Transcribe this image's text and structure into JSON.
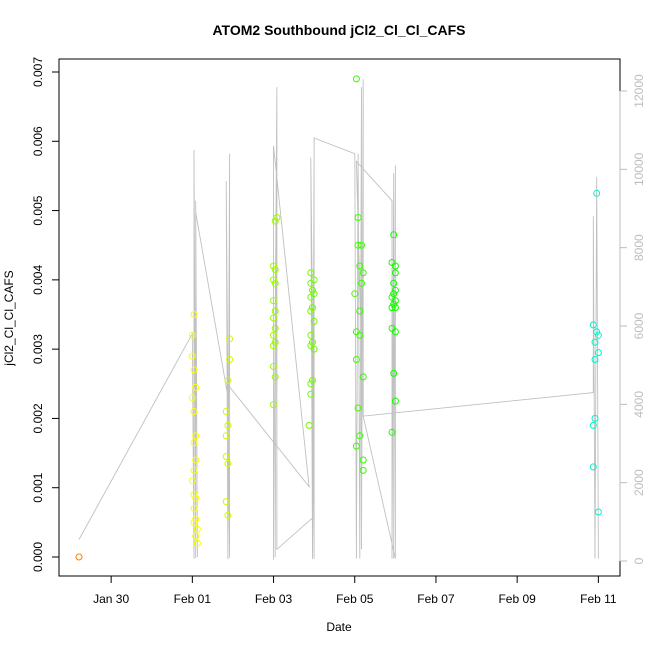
{
  "chart_data": {
    "type": "scatter",
    "title": "ATOM2 Southbound jCl2_Cl_Cl_CAFS",
    "xlabel": "Date",
    "ylabel": "jCl2_Cl_Cl_CAFS",
    "x_ticks": [
      "Jan 30",
      "Feb 01",
      "Feb 03",
      "Feb 05",
      "Feb 07",
      "Feb 09",
      "Feb 11"
    ],
    "y_ticks": [
      "0.000",
      "0.001",
      "0.002",
      "0.003",
      "0.004",
      "0.005",
      "0.006",
      "0.007"
    ],
    "y2_ticks": [
      "0",
      "2000",
      "4000",
      "6000",
      "8000",
      "10000",
      "12000"
    ],
    "points": [
      {
        "x": "Jan 29 05:00",
        "y": 0.0
      },
      {
        "x": "Feb 01 00:00",
        "y": 0.0032
      },
      {
        "x": "Feb 01 00:00",
        "y": 0.0029
      },
      {
        "x": "Feb 01 01:00",
        "y": 0.0035
      },
      {
        "x": "Feb 01 01:00",
        "y": 0.0027
      },
      {
        "x": "Feb 01 02:00",
        "y": 0.00245
      },
      {
        "x": "Feb 01 00:00",
        "y": 0.0023
      },
      {
        "x": "Feb 01 01:00",
        "y": 0.0021
      },
      {
        "x": "Feb 01 02:00",
        "y": 0.00175
      },
      {
        "x": "Feb 01 01:00",
        "y": 0.00165
      },
      {
        "x": "Feb 01 02:00",
        "y": 0.0014
      },
      {
        "x": "Feb 01 01:00",
        "y": 0.00125
      },
      {
        "x": "Feb 01 00:00",
        "y": 0.0011
      },
      {
        "x": "Feb 01 01:00",
        "y": 0.0009
      },
      {
        "x": "Feb 01 02:00",
        "y": 0.00085
      },
      {
        "x": "Feb 01 01:00",
        "y": 0.0007
      },
      {
        "x": "Feb 01 02:00",
        "y": 0.00055
      },
      {
        "x": "Feb 01 01:00",
        "y": 0.0005
      },
      {
        "x": "Feb 01 03:00",
        "y": 0.0004
      },
      {
        "x": "Feb 01 02:00",
        "y": 0.0003
      },
      {
        "x": "Feb 01 03:00",
        "y": 0.0002
      },
      {
        "x": "Feb 01 22:00",
        "y": 0.00315
      },
      {
        "x": "Feb 01 22:00",
        "y": 0.00285
      },
      {
        "x": "Feb 01 21:00",
        "y": 0.00255
      },
      {
        "x": "Feb 01 20:00",
        "y": 0.0021
      },
      {
        "x": "Feb 01 21:00",
        "y": 0.0019
      },
      {
        "x": "Feb 01 20:00",
        "y": 0.00175
      },
      {
        "x": "Feb 01 20:00",
        "y": 0.00145
      },
      {
        "x": "Feb 01 21:00",
        "y": 0.00135
      },
      {
        "x": "Feb 01 20:00",
        "y": 0.0008
      },
      {
        "x": "Feb 01 21:00",
        "y": 0.0006
      },
      {
        "x": "Feb 03 02:00",
        "y": 0.0049
      },
      {
        "x": "Feb 03 01:00",
        "y": 0.00485
      },
      {
        "x": "Feb 03 00:00",
        "y": 0.0042
      },
      {
        "x": "Feb 03 01:00",
        "y": 0.00415
      },
      {
        "x": "Feb 03 00:00",
        "y": 0.004
      },
      {
        "x": "Feb 03 01:00",
        "y": 0.00395
      },
      {
        "x": "Feb 03 00:00",
        "y": 0.0037
      },
      {
        "x": "Feb 03 01:00",
        "y": 0.00355
      },
      {
        "x": "Feb 03 00:00",
        "y": 0.00345
      },
      {
        "x": "Feb 03 01:00",
        "y": 0.0033
      },
      {
        "x": "Feb 03 00:00",
        "y": 0.0032
      },
      {
        "x": "Feb 03 01:00",
        "y": 0.0031
      },
      {
        "x": "Feb 03 00:00",
        "y": 0.00305
      },
      {
        "x": "Feb 03 00:00",
        "y": 0.00275
      },
      {
        "x": "Feb 03 01:00",
        "y": 0.0026
      },
      {
        "x": "Feb 03 00:00",
        "y": 0.0022
      },
      {
        "x": "Feb 03 22:00",
        "y": 0.0041
      },
      {
        "x": "Feb 04 00:00",
        "y": 0.004
      },
      {
        "x": "Feb 03 22:00",
        "y": 0.00395
      },
      {
        "x": "Feb 03 23:00",
        "y": 0.00385
      },
      {
        "x": "Feb 03 22:00",
        "y": 0.00375
      },
      {
        "x": "Feb 04 00:00",
        "y": 0.0038
      },
      {
        "x": "Feb 03 23:00",
        "y": 0.0036
      },
      {
        "x": "Feb 03 22:00",
        "y": 0.00355
      },
      {
        "x": "Feb 04 00:00",
        "y": 0.0034
      },
      {
        "x": "Feb 03 22:00",
        "y": 0.0032
      },
      {
        "x": "Feb 03 23:00",
        "y": 0.0031
      },
      {
        "x": "Feb 03 22:00",
        "y": 0.00305
      },
      {
        "x": "Feb 04 00:00",
        "y": 0.003
      },
      {
        "x": "Feb 03 23:00",
        "y": 0.00255
      },
      {
        "x": "Feb 03 22:00",
        "y": 0.0025
      },
      {
        "x": "Feb 03 22:00",
        "y": 0.00235
      },
      {
        "x": "Feb 03 21:00",
        "y": 0.0019
      },
      {
        "x": "Feb 05 01:00",
        "y": 0.0069
      },
      {
        "x": "Feb 05 02:00",
        "y": 0.0049
      },
      {
        "x": "Feb 05 02:00",
        "y": 0.0045
      },
      {
        "x": "Feb 05 04:00",
        "y": 0.0045
      },
      {
        "x": "Feb 05 03:00",
        "y": 0.0042
      },
      {
        "x": "Feb 05 05:00",
        "y": 0.0041
      },
      {
        "x": "Feb 05 04:00",
        "y": 0.00395
      },
      {
        "x": "Feb 05 00:00",
        "y": 0.0038
      },
      {
        "x": "Feb 05 03:00",
        "y": 0.00355
      },
      {
        "x": "Feb 05 01:00",
        "y": 0.00325
      },
      {
        "x": "Feb 05 03:00",
        "y": 0.0032
      },
      {
        "x": "Feb 05 01:00",
        "y": 0.00285
      },
      {
        "x": "Feb 05 05:00",
        "y": 0.0026
      },
      {
        "x": "Feb 05 02:00",
        "y": 0.00215
      },
      {
        "x": "Feb 05 03:00",
        "y": 0.00175
      },
      {
        "x": "Feb 05 01:00",
        "y": 0.0016
      },
      {
        "x": "Feb 05 05:00",
        "y": 0.0014
      },
      {
        "x": "Feb 05 05:00",
        "y": 0.00125
      },
      {
        "x": "Feb 05 23:00",
        "y": 0.00465
      },
      {
        "x": "Feb 05 22:00",
        "y": 0.00425
      },
      {
        "x": "Feb 06 00:00",
        "y": 0.0042
      },
      {
        "x": "Feb 06 00:00",
        "y": 0.0041
      },
      {
        "x": "Feb 05 23:00",
        "y": 0.00395
      },
      {
        "x": "Feb 06 00:00",
        "y": 0.00385
      },
      {
        "x": "Feb 05 23:00",
        "y": 0.0038
      },
      {
        "x": "Feb 05 22:00",
        "y": 0.00375
      },
      {
        "x": "Feb 06 00:00",
        "y": 0.0037
      },
      {
        "x": "Feb 05 23:00",
        "y": 0.00365
      },
      {
        "x": "Feb 05 22:00",
        "y": 0.0036
      },
      {
        "x": "Feb 06 00:00",
        "y": 0.0036
      },
      {
        "x": "Feb 05 22:00",
        "y": 0.0033
      },
      {
        "x": "Feb 06 00:00",
        "y": 0.00325
      },
      {
        "x": "Feb 05 23:00",
        "y": 0.00265
      },
      {
        "x": "Feb 06 00:00",
        "y": 0.00225
      },
      {
        "x": "Feb 05 22:00",
        "y": 0.0018
      },
      {
        "x": "Feb 10 23:00",
        "y": 0.00525
      },
      {
        "x": "Feb 10 21:00",
        "y": 0.00335
      },
      {
        "x": "Feb 10 23:00",
        "y": 0.00325
      },
      {
        "x": "Feb 11 00:00",
        "y": 0.0032
      },
      {
        "x": "Feb 10 22:00",
        "y": 0.0031
      },
      {
        "x": "Feb 11 00:00",
        "y": 0.00295
      },
      {
        "x": "Feb 10 22:00",
        "y": 0.00285
      },
      {
        "x": "Feb 10 22:00",
        "y": 0.002
      },
      {
        "x": "Feb 10 21:00",
        "y": 0.0019
      },
      {
        "x": "Feb 10 21:00",
        "y": 0.0013
      },
      {
        "x": "Feb 11 00:00",
        "y": 0.00065
      }
    ],
    "y2_line": [
      {
        "x": "Jan 29 05:00",
        "y2": 550
      },
      {
        "x": "Feb 01 00:00",
        "y2": 5800
      },
      {
        "x": "Feb 01 01:00",
        "y2": 50
      },
      {
        "x": "Feb 01 01:00",
        "y2": 10500
      },
      {
        "x": "Feb 01 02:00",
        "y2": 80
      },
      {
        "x": "Feb 01 02:00",
        "y2": 9200
      },
      {
        "x": "Feb 01 03:00",
        "y2": 100
      },
      {
        "x": "Feb 01 02:00",
        "y2": 8900
      },
      {
        "x": "Feb 01 21:00",
        "y2": 4200
      },
      {
        "x": "Feb 01 20:00",
        "y2": 9700
      },
      {
        "x": "Feb 01 21:00",
        "y2": 50
      },
      {
        "x": "Feb 01 22:00",
        "y2": 10400
      },
      {
        "x": "Feb 01 22:00",
        "y2": 80
      },
      {
        "x": "Feb 01 21:00",
        "y2": 4500
      },
      {
        "x": "Feb 03 21:00",
        "y2": 1900
      },
      {
        "x": "Feb 03 00:00",
        "y2": 10600
      },
      {
        "x": "Feb 03 00:00",
        "y2": 30
      },
      {
        "x": "Feb 03 02:00",
        "y2": 12100
      },
      {
        "x": "Feb 03 01:00",
        "y2": 100
      },
      {
        "x": "Feb 03 02:00",
        "y2": 11900
      },
      {
        "x": "Feb 03 02:00",
        "y2": 300
      },
      {
        "x": "Feb 03 23:00",
        "y2": 1100
      },
      {
        "x": "Feb 03 22:00",
        "y2": 10300
      },
      {
        "x": "Feb 03 23:00",
        "y2": 50
      },
      {
        "x": "Feb 04 00:00",
        "y2": 10600
      },
      {
        "x": "Feb 04 00:00",
        "y2": 60
      },
      {
        "x": "Feb 03 22:00",
        "y2": 10300
      },
      {
        "x": "Feb 04 00:00",
        "y2": 2200
      },
      {
        "x": "Feb 04 00:00",
        "y2": 10800
      },
      {
        "x": "Feb 05 00:00",
        "y2": 10400
      },
      {
        "x": "Feb 05 01:00",
        "y2": 60
      },
      {
        "x": "Feb 05 02:00",
        "y2": 10400
      },
      {
        "x": "Feb 05 03:00",
        "y2": 60
      },
      {
        "x": "Feb 05 04:00",
        "y2": 12100
      },
      {
        "x": "Feb 05 04:00",
        "y2": 300
      },
      {
        "x": "Feb 05 05:00",
        "y2": 12300
      },
      {
        "x": "Feb 05 05:00",
        "y2": 3700
      },
      {
        "x": "Feb 05 01:00",
        "y2": 10200
      },
      {
        "x": "Feb 05 22:00",
        "y2": 9200
      },
      {
        "x": "Feb 05 22:00",
        "y2": 60
      },
      {
        "x": "Feb 05 23:00",
        "y2": 9900
      },
      {
        "x": "Feb 05 23:00",
        "y2": 60
      },
      {
        "x": "Feb 06 00:00",
        "y2": 10100
      },
      {
        "x": "Feb 06 00:00",
        "y2": 60
      },
      {
        "x": "Feb 05 05:00",
        "y2": 3700
      },
      {
        "x": "Feb 10 21:00",
        "y2": 4300
      },
      {
        "x": "Feb 10 21:00",
        "y2": 8800
      },
      {
        "x": "Feb 10 22:00",
        "y2": 60
      },
      {
        "x": "Feb 10 23:00",
        "y2": 9800
      },
      {
        "x": "Feb 11 00:00",
        "y2": 60
      }
    ],
    "colors": {
      "line": "#c0c0c0",
      "axis": "#000000",
      "axis_right": "#bdbdbd"
    }
  }
}
